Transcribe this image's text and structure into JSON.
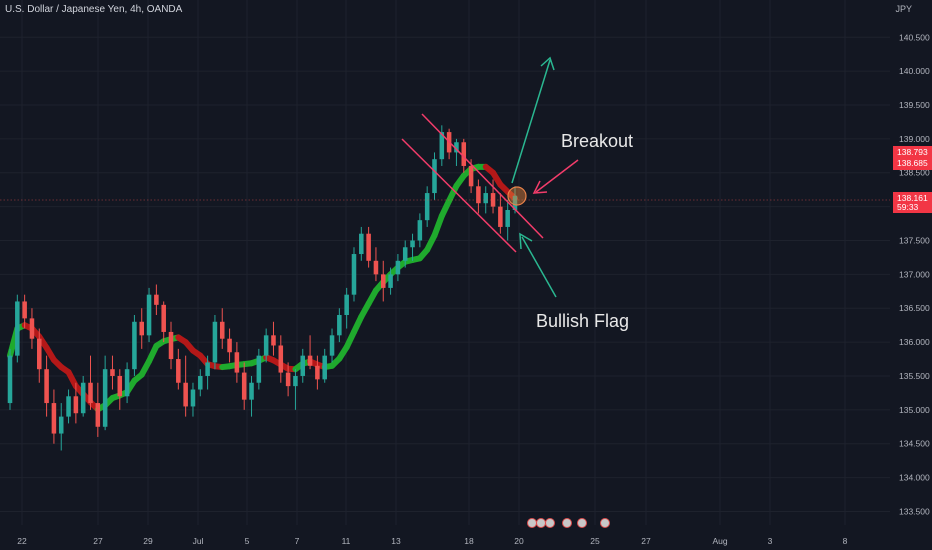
{
  "header": {
    "symbol": "U.S. Dollar / Japanese Yen, 4h, OANDA",
    "currency": "JPY"
  },
  "price_tags": {
    "high": "138.793",
    "low": "138.685",
    "last": "138.161",
    "countdown": "59:33"
  },
  "annotations": {
    "breakout": "Breakout",
    "flag": "Bullish Flag"
  },
  "colors": {
    "up": "#26a69a",
    "down": "#ef5350",
    "ma_up": "#1faa2d",
    "ma_down": "#b41818",
    "flag": "#f23c6a",
    "arrow_up": "#2ab791",
    "bg": "#131722"
  },
  "chart_data": {
    "type": "candlestick",
    "title": "U.S. Dollar / Japanese Yen, 4h, OANDA",
    "ylim": [
      133.3,
      141.05
    ],
    "yticks": [
      "140.500",
      "140.000",
      "139.500",
      "139.000",
      "138.500",
      "138.000",
      "137.500",
      "137.000",
      "136.500",
      "136.000",
      "135.500",
      "135.000",
      "134.500",
      "134.000",
      "133.500"
    ],
    "xticks": [
      "22",
      "27",
      "29",
      "Jul",
      "5",
      "7",
      "11",
      "13",
      "18",
      "20",
      "25",
      "27",
      "Aug",
      "3",
      "8"
    ],
    "grid": true,
    "candles": [
      [
        135.1,
        135.9,
        135.0,
        135.8
      ],
      [
        135.8,
        136.7,
        135.7,
        136.6
      ],
      [
        136.6,
        136.7,
        136.2,
        136.35
      ],
      [
        136.35,
        136.5,
        135.9,
        136.05
      ],
      [
        136.05,
        136.2,
        135.4,
        135.6
      ],
      [
        135.6,
        135.8,
        134.9,
        135.1
      ],
      [
        135.1,
        135.3,
        134.5,
        134.65
      ],
      [
        134.65,
        135.1,
        134.4,
        134.9
      ],
      [
        134.9,
        135.3,
        134.8,
        135.2
      ],
      [
        135.2,
        135.4,
        134.8,
        134.95
      ],
      [
        134.95,
        135.5,
        134.9,
        135.4
      ],
      [
        135.4,
        135.8,
        135.0,
        135.1
      ],
      [
        135.1,
        135.4,
        134.6,
        134.75
      ],
      [
        134.75,
        135.8,
        134.7,
        135.6
      ],
      [
        135.6,
        135.8,
        135.3,
        135.5
      ],
      [
        135.5,
        135.6,
        135.0,
        135.2
      ],
      [
        135.2,
        135.7,
        135.1,
        135.6
      ],
      [
        135.6,
        136.4,
        135.5,
        136.3
      ],
      [
        136.3,
        136.5,
        135.9,
        136.1
      ],
      [
        136.1,
        136.8,
        136.0,
        136.7
      ],
      [
        136.7,
        136.85,
        136.4,
        136.55
      ],
      [
        136.55,
        136.6,
        136.0,
        136.15
      ],
      [
        136.15,
        136.3,
        135.6,
        135.75
      ],
      [
        135.75,
        135.9,
        135.3,
        135.4
      ],
      [
        135.4,
        135.8,
        134.9,
        135.05
      ],
      [
        135.05,
        135.4,
        134.9,
        135.3
      ],
      [
        135.3,
        135.6,
        135.2,
        135.5
      ],
      [
        135.5,
        135.8,
        135.3,
        135.7
      ],
      [
        135.7,
        136.4,
        135.6,
        136.3
      ],
      [
        136.3,
        136.5,
        135.9,
        136.05
      ],
      [
        136.05,
        136.2,
        135.7,
        135.85
      ],
      [
        135.85,
        136.0,
        135.4,
        135.55
      ],
      [
        135.55,
        135.7,
        135.0,
        135.15
      ],
      [
        135.15,
        135.5,
        134.9,
        135.4
      ],
      [
        135.4,
        135.9,
        135.3,
        135.8
      ],
      [
        135.8,
        136.2,
        135.7,
        136.1
      ],
      [
        136.1,
        136.3,
        135.8,
        135.95
      ],
      [
        135.95,
        136.1,
        135.4,
        135.55
      ],
      [
        135.55,
        135.7,
        135.2,
        135.35
      ],
      [
        135.35,
        135.6,
        135.0,
        135.5
      ],
      [
        135.5,
        135.9,
        135.4,
        135.8
      ],
      [
        135.8,
        136.1,
        135.6,
        135.65
      ],
      [
        135.65,
        135.8,
        135.3,
        135.45
      ],
      [
        135.45,
        135.9,
        135.4,
        135.8
      ],
      [
        135.8,
        136.2,
        135.7,
        136.1
      ],
      [
        136.1,
        136.5,
        136.0,
        136.4
      ],
      [
        136.4,
        136.8,
        136.2,
        136.7
      ],
      [
        136.7,
        137.4,
        136.6,
        137.3
      ],
      [
        137.3,
        137.7,
        137.2,
        137.6
      ],
      [
        137.6,
        137.7,
        137.1,
        137.2
      ],
      [
        137.2,
        137.4,
        136.9,
        137.0
      ],
      [
        137.0,
        137.2,
        136.6,
        136.8
      ],
      [
        136.8,
        137.1,
        136.7,
        137.0
      ],
      [
        137.0,
        137.3,
        136.9,
        137.2
      ],
      [
        137.2,
        137.5,
        137.1,
        137.4
      ],
      [
        137.4,
        137.6,
        137.2,
        137.5
      ],
      [
        137.5,
        137.9,
        137.4,
        137.8
      ],
      [
        137.8,
        138.3,
        137.7,
        138.2
      ],
      [
        138.2,
        138.8,
        138.1,
        138.7
      ],
      [
        138.7,
        139.2,
        138.6,
        139.1
      ],
      [
        139.1,
        139.15,
        138.7,
        138.8
      ],
      [
        138.8,
        139.0,
        138.6,
        138.95
      ],
      [
        138.95,
        139.0,
        138.5,
        138.6
      ],
      [
        138.6,
        138.7,
        138.2,
        138.3
      ],
      [
        138.3,
        138.4,
        137.9,
        138.05
      ],
      [
        138.05,
        138.3,
        137.9,
        138.2
      ],
      [
        138.2,
        138.4,
        137.9,
        138.0
      ],
      [
        138.0,
        138.2,
        137.6,
        137.7
      ],
      [
        137.7,
        138.1,
        137.5,
        137.95
      ],
      [
        137.95,
        138.3,
        137.9,
        138.16
      ]
    ]
  }
}
